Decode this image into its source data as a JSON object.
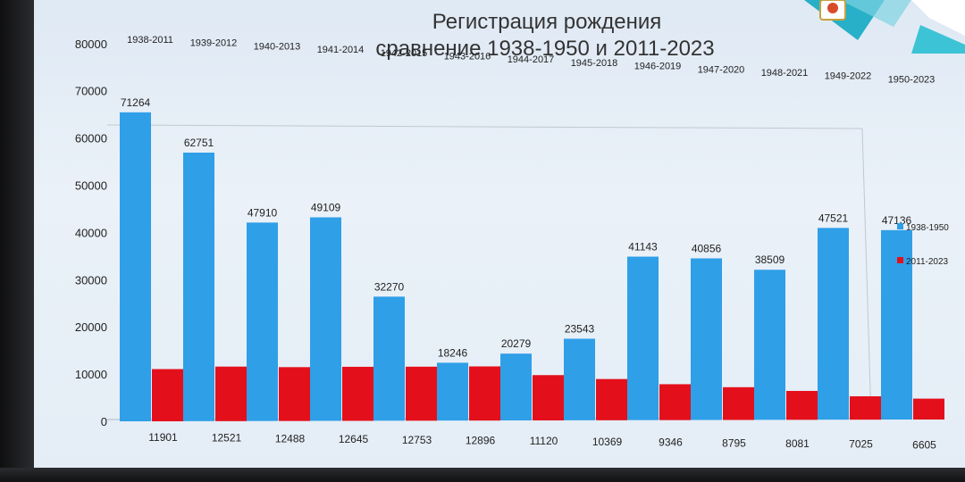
{
  "chart_data": {
    "type": "bar",
    "title": "Регистрация рождения",
    "subtitle": "сравнение 1938-1950 и 2011-2023",
    "categories": [
      "1938-2011",
      "1939-2012",
      "1940-2013",
      "1941-2014",
      "1942-2015",
      "1943-2016",
      "1944-2017",
      "1945-2018",
      "1946-2019",
      "1947-2020",
      "1948-2021",
      "1949-2022",
      "1950-2023"
    ],
    "series": [
      {
        "name": "1938-1950",
        "color": "#2f9fe8",
        "values": [
          71264,
          62751,
          47910,
          49109,
          32270,
          18246,
          20279,
          23543,
          41143,
          40856,
          38509,
          47521,
          47136
        ]
      },
      {
        "name": "2011-2023",
        "color": "#e3101c",
        "values": [
          11901,
          12521,
          12488,
          12645,
          12753,
          12896,
          11120,
          10369,
          9346,
          8795,
          8081,
          7025,
          6605
        ]
      }
    ],
    "yticks": [
      "0",
      "10000",
      "20000",
      "30000",
      "40000",
      "50000",
      "60000",
      "70000",
      "80000"
    ],
    "ylim": [
      0,
      80000
    ],
    "legend_position": "right",
    "grid": false
  }
}
